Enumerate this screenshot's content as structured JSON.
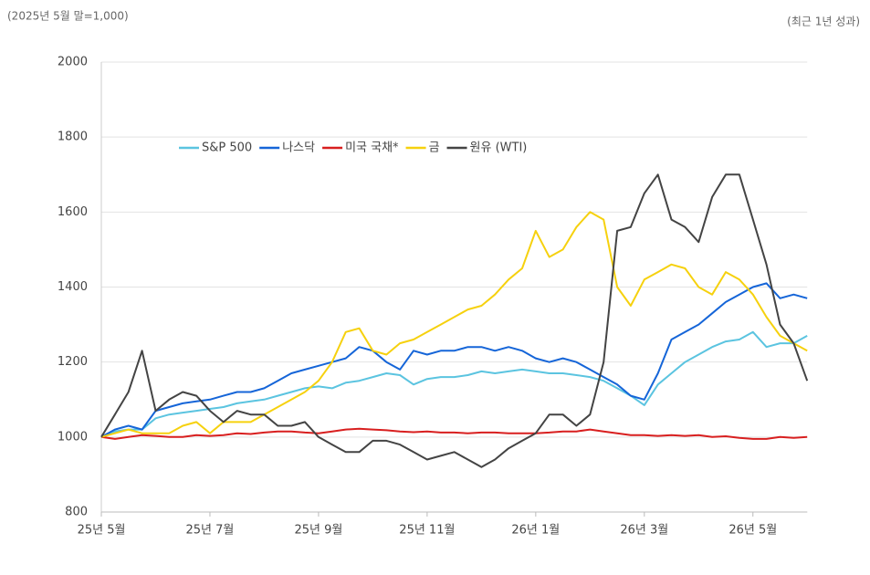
{
  "chart_data": {
    "type": "line",
    "subtitle": "(2025년 5월 말=1,000)",
    "annotation": "(최근 1년 성과)",
    "categories": [
      "25년 5월",
      null,
      null,
      null,
      null,
      null,
      null,
      null,
      "25년 7월",
      null,
      null,
      null,
      null,
      null,
      null,
      null,
      "25년 9월",
      null,
      null,
      null,
      null,
      null,
      null,
      null,
      "25년 11월",
      null,
      null,
      null,
      null,
      null,
      null,
      null,
      "26년 1월",
      null,
      null,
      null,
      null,
      null,
      null,
      null,
      "26년 3월",
      null,
      null,
      null,
      null,
      null,
      null,
      null,
      "26년 5월",
      null,
      null,
      null,
      null
    ],
    "series": [
      {
        "name": "S&P 500",
        "color": "#5bc4e0",
        "values": [
          1000,
          1015,
          1020,
          1020,
          1050,
          1060,
          1065,
          1070,
          1075,
          1080,
          1090,
          1095,
          1100,
          1110,
          1120,
          1130,
          1135,
          1130,
          1145,
          1150,
          1160,
          1170,
          1165,
          1140,
          1155,
          1160,
          1160,
          1165,
          1175,
          1170,
          1175,
          1180,
          1175,
          1170,
          1170,
          1165,
          1160,
          1150,
          1130,
          1110,
          1085,
          1140,
          1170,
          1200,
          1220,
          1240,
          1255,
          1260,
          1280,
          1240,
          1250,
          1250,
          1270
        ]
      },
      {
        "name": "나스닥",
        "color": "#1565d8",
        "values": [
          1000,
          1020,
          1030,
          1020,
          1070,
          1080,
          1090,
          1095,
          1100,
          1110,
          1120,
          1120,
          1130,
          1150,
          1170,
          1180,
          1190,
          1200,
          1210,
          1240,
          1230,
          1200,
          1180,
          1230,
          1220,
          1230,
          1230,
          1240,
          1240,
          1230,
          1240,
          1230,
          1210,
          1200,
          1210,
          1200,
          1180,
          1160,
          1140,
          1110,
          1100,
          1170,
          1260,
          1280,
          1300,
          1330,
          1360,
          1380,
          1400,
          1410,
          1370,
          1380,
          1370
        ]
      },
      {
        "name": "미국 국채*",
        "color": "#d81f1f",
        "values": [
          1000,
          995,
          1000,
          1005,
          1003,
          1000,
          1000,
          1005,
          1003,
          1005,
          1010,
          1008,
          1012,
          1015,
          1015,
          1012,
          1010,
          1015,
          1020,
          1022,
          1020,
          1018,
          1015,
          1013,
          1015,
          1012,
          1012,
          1010,
          1012,
          1012,
          1010,
          1010,
          1010,
          1012,
          1015,
          1015,
          1020,
          1015,
          1010,
          1005,
          1005,
          1003,
          1005,
          1003,
          1005,
          1000,
          1002,
          998,
          995,
          995,
          1000,
          998,
          1000
        ]
      },
      {
        "name": "금",
        "color": "#f6d10e",
        "values": [
          1000,
          1010,
          1020,
          1010,
          1010,
          1010,
          1030,
          1040,
          1010,
          1040,
          1040,
          1040,
          1060,
          1080,
          1100,
          1120,
          1150,
          1200,
          1280,
          1290,
          1230,
          1220,
          1250,
          1260,
          1280,
          1300,
          1320,
          1340,
          1350,
          1380,
          1420,
          1450,
          1550,
          1480,
          1500,
          1560,
          1600,
          1580,
          1400,
          1350,
          1420,
          1440,
          1460,
          1450,
          1400,
          1380,
          1440,
          1420,
          1380,
          1320,
          1270,
          1250,
          1230
        ]
      },
      {
        "name": "원유 (WTI)",
        "color": "#444444",
        "values": [
          1000,
          1060,
          1120,
          1230,
          1070,
          1100,
          1120,
          1110,
          1070,
          1040,
          1070,
          1060,
          1060,
          1030,
          1030,
          1040,
          1000,
          980,
          960,
          960,
          990,
          990,
          980,
          960,
          940,
          950,
          960,
          940,
          920,
          940,
          970,
          990,
          1010,
          1060,
          1060,
          1030,
          1060,
          1200,
          1550,
          1560,
          1650,
          1700,
          1580,
          1560,
          1520,
          1640,
          1700,
          1700,
          1580,
          1460,
          1300,
          1250,
          1150
        ]
      }
    ],
    "ylim": [
      800,
      2000
    ],
    "yticks": [
      800,
      1000,
      1200,
      1400,
      1600,
      1800,
      2000
    ],
    "grid": true
  }
}
